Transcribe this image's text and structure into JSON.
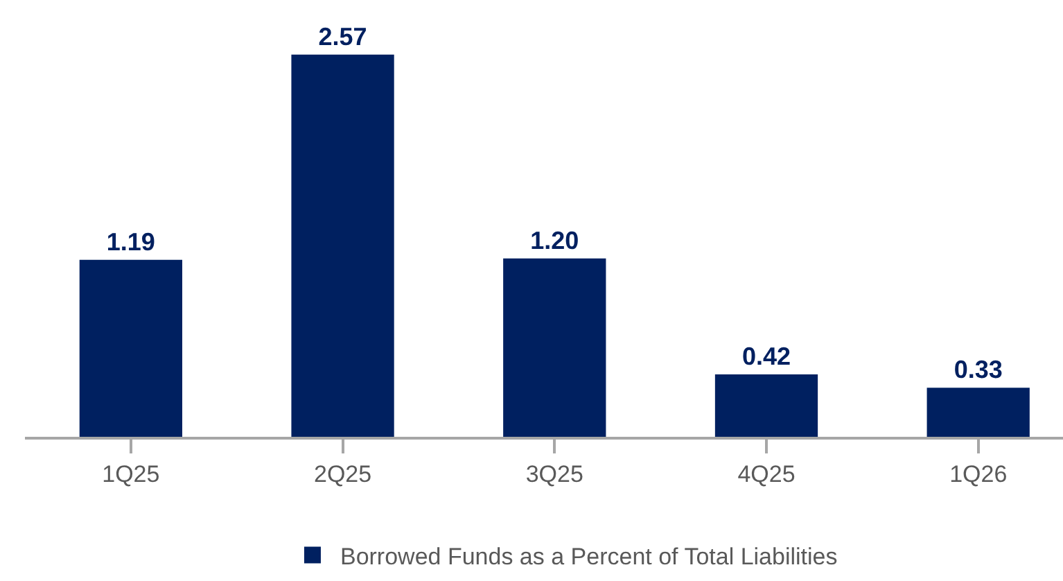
{
  "chart_data": {
    "type": "bar",
    "categories": [
      "1Q25",
      "2Q25",
      "3Q25",
      "4Q25",
      "1Q26"
    ],
    "series": [
      {
        "name": "Borrowed Funds as a Percent of Total Liabilities",
        "color": "#002060",
        "values": [
          1.19,
          2.57,
          1.2,
          0.42,
          0.33
        ],
        "value_labels": [
          "1.19",
          "2.57",
          "1.20",
          "0.42",
          "0.33"
        ]
      }
    ],
    "legend": "bottom",
    "tick_labels": "x"
  }
}
